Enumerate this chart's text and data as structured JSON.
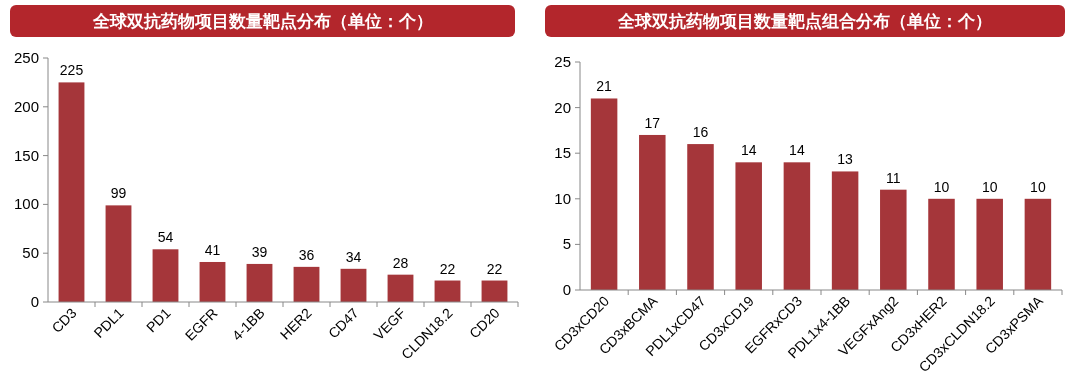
{
  "chart_data": [
    {
      "type": "bar",
      "title": "全球双抗药物项目数量靶点分布（单位：个）",
      "categories": [
        "CD3",
        "PDL1",
        "PD1",
        "EGFR",
        "4-1BB",
        "HER2",
        "CD47",
        "VEGF",
        "CLDN18.2",
        "CD20"
      ],
      "values": [
        225,
        99,
        54,
        41,
        39,
        36,
        34,
        28,
        22,
        22
      ],
      "color": "#a5363a",
      "ylim": [
        0,
        250
      ],
      "yticks": [
        0,
        50,
        100,
        150,
        200,
        250
      ],
      "data_labels": true,
      "grid": false
    },
    {
      "type": "bar",
      "title": "全球双抗药物项目数量靶点组合分布（单位：个）",
      "categories": [
        "CD3xCD20",
        "CD3xBCMA",
        "PDL1xCD47",
        "CD3xCD19",
        "EGFRxCD3",
        "PDL1x4-1BB",
        "VEGFxAng2",
        "CD3xHER2",
        "CD3xCLDN18.2",
        "CD3xPSMA"
      ],
      "values": [
        21,
        17,
        16,
        14,
        14,
        13,
        11,
        10,
        10,
        10
      ],
      "color": "#a5363a",
      "ylim": [
        0,
        25
      ],
      "yticks": [
        0,
        5,
        10,
        15,
        20,
        25
      ],
      "data_labels": true,
      "grid": false
    }
  ]
}
